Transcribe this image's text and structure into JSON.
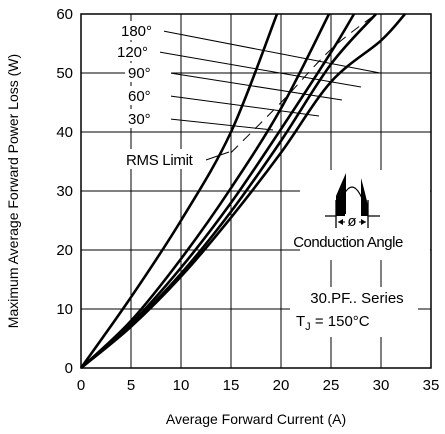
{
  "chart_data": {
    "type": "line",
    "title": "",
    "xlabel": "Average Forward Current (A)",
    "ylabel": "Maximum Average Forward Power Loss (W)",
    "xlim": [
      0,
      35
    ],
    "ylim": [
      0,
      60
    ],
    "xticks": [
      "0",
      "5",
      "10",
      "15",
      "20",
      "25",
      "30",
      "35"
    ],
    "yticks": [
      "0",
      "10",
      "20",
      "30",
      "40",
      "50",
      "60"
    ],
    "grid": true,
    "series": [
      {
        "name": "180°",
        "x": [
          0,
          5,
          10,
          15,
          20,
          25,
          30,
          32.4
        ],
        "y": [
          0,
          7,
          15.5,
          25.5,
          36.5,
          48.5,
          55.5,
          60
        ]
      },
      {
        "name": "120°",
        "x": [
          0,
          5,
          10,
          15,
          20,
          25,
          29.5
        ],
        "y": [
          0,
          7.2,
          16,
          26.5,
          38.5,
          51.5,
          60
        ]
      },
      {
        "name": "90°",
        "x": [
          0,
          5,
          10,
          15,
          20,
          25,
          27.3
        ],
        "y": [
          0,
          7.5,
          17,
          28,
          40.5,
          53.5,
          60
        ]
      },
      {
        "name": "60°",
        "x": [
          0,
          5,
          10,
          15,
          20,
          24.8
        ],
        "y": [
          0,
          8,
          18.5,
          30.5,
          44,
          60
        ]
      },
      {
        "name": "30°",
        "x": [
          0,
          5,
          10,
          15,
          19.6
        ],
        "y": [
          0,
          12,
          25,
          40,
          60
        ]
      }
    ],
    "rms_limit": {
      "name": "RMS Limit",
      "x": [
        15,
        20,
        25,
        29.5
      ],
      "y": [
        36.5,
        45,
        54,
        60
      ]
    }
  },
  "annotations": {
    "rms_limit": "RMS Limit",
    "conduction_angle": "Conduction Angle",
    "phi": "ø",
    "series_name": "30.PF.. Series",
    "tj_prefix": "T",
    "tj_sub": "J",
    "tj_suffix": " = 150°C"
  }
}
